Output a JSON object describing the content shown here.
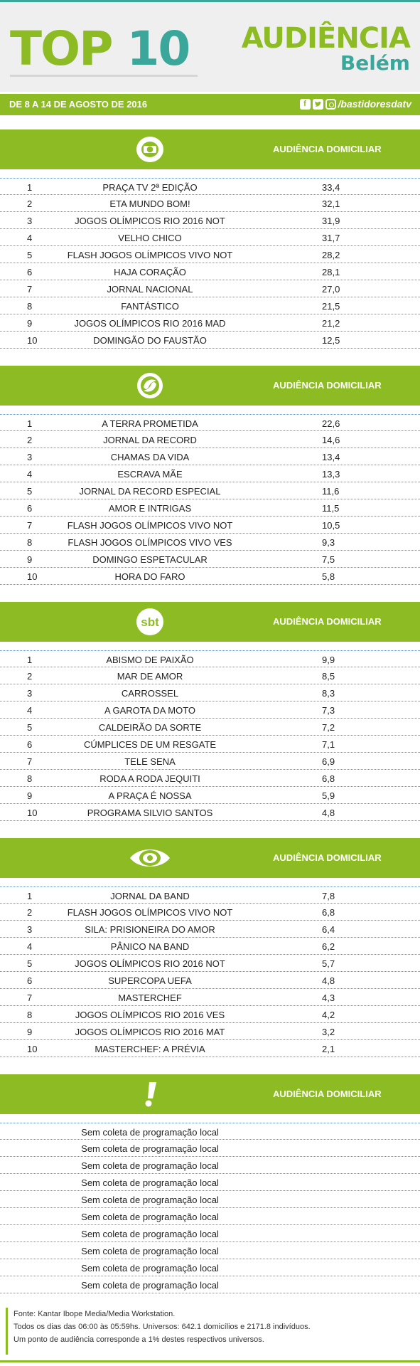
{
  "header": {
    "title_part1": "TOP",
    "title_part2": "10",
    "audience_label": "AUDIÊNCIA",
    "city": "Belém"
  },
  "subbar": {
    "date_range": "DE 8 A 14 DE AGOSTO DE 2016",
    "social_handle": "/bastidoresdatv"
  },
  "colors": {
    "brand_green": "#8dbb23",
    "brand_teal": "#3aa79a"
  },
  "sections": [
    {
      "logo_icon": "globo-logo-icon",
      "column_label": "AUDIÊNCIA DOMICILIAR",
      "rows": [
        {
          "rank": "1",
          "program": "PRAÇA TV 2ª EDIÇÃO",
          "value": "33,4"
        },
        {
          "rank": "2",
          "program": "ETA MUNDO BOM!",
          "value": "32,1"
        },
        {
          "rank": "3",
          "program": "JOGOS OLÍMPICOS RIO 2016 NOT",
          "value": "31,9"
        },
        {
          "rank": "4",
          "program": "VELHO CHICO",
          "value": "31,7"
        },
        {
          "rank": "5",
          "program": "FLASH JOGOS OLÍMPICOS VIVO NOT",
          "value": "28,2"
        },
        {
          "rank": "6",
          "program": "HAJA CORAÇÃO",
          "value": "28,1"
        },
        {
          "rank": "7",
          "program": "JORNAL NACIONAL",
          "value": "27,0"
        },
        {
          "rank": "8",
          "program": "FANTÁSTICO",
          "value": "21,5"
        },
        {
          "rank": "9",
          "program": "JOGOS OLÍMPICOS RIO 2016 MAD",
          "value": "21,2"
        },
        {
          "rank": "10",
          "program": "DOMINGÃO DO FAUSTÃO",
          "value": "12,5"
        }
      ]
    },
    {
      "logo_icon": "record-logo-icon",
      "column_label": "AUDIÊNCIA DOMICILIAR",
      "rows": [
        {
          "rank": "1",
          "program": "A TERRA PROMETIDA",
          "value": "22,6"
        },
        {
          "rank": "2",
          "program": "JORNAL DA RECORD",
          "value": "14,6"
        },
        {
          "rank": "3",
          "program": "CHAMAS DA VIDA",
          "value": "13,4"
        },
        {
          "rank": "4",
          "program": "ESCRAVA MÃE",
          "value": "13,3"
        },
        {
          "rank": "5",
          "program": "JORNAL DA RECORD ESPECIAL",
          "value": "11,6"
        },
        {
          "rank": "6",
          "program": "AMOR E INTRIGAS",
          "value": "11,5"
        },
        {
          "rank": "7",
          "program": "FLASH JOGOS OLÍMPICOS VIVO NOT",
          "value": "10,5"
        },
        {
          "rank": "8",
          "program": "FLASH JOGOS OLÍMPICOS VIVO VES",
          "value": "9,3"
        },
        {
          "rank": "9",
          "program": "DOMINGO ESPETACULAR",
          "value": "7,5"
        },
        {
          "rank": "10",
          "program": "HORA DO FARO",
          "value": "5,8"
        }
      ]
    },
    {
      "logo_icon": "sbt-logo-icon",
      "logo_text": "sbt",
      "column_label": "AUDIÊNCIA DOMICILIAR",
      "rows": [
        {
          "rank": "1",
          "program": "ABISMO DE PAIXÃO",
          "value": "9,9"
        },
        {
          "rank": "2",
          "program": "MAR DE AMOR",
          "value": "8,5"
        },
        {
          "rank": "3",
          "program": "CARROSSEL",
          "value": "8,3"
        },
        {
          "rank": "4",
          "program": "A GAROTA DA MOTO",
          "value": "7,3"
        },
        {
          "rank": "5",
          "program": "CALDEIRÃO DA SORTE",
          "value": "7,2"
        },
        {
          "rank": "6",
          "program": "CÚMPLICES DE UM RESGATE",
          "value": "7,1"
        },
        {
          "rank": "7",
          "program": "TELE SENA",
          "value": "6,9"
        },
        {
          "rank": "8",
          "program": "RODA A RODA JEQUITI",
          "value": "6,8"
        },
        {
          "rank": "9",
          "program": "A PRAÇA É NOSSA",
          "value": "5,9"
        },
        {
          "rank": "10",
          "program": "PROGRAMA SILVIO SANTOS",
          "value": "4,8"
        }
      ]
    },
    {
      "logo_icon": "band-logo-icon",
      "column_label": "AUDIÊNCIA DOMICILIAR",
      "rows": [
        {
          "rank": "1",
          "program": "JORNAL DA BAND",
          "value": "7,8"
        },
        {
          "rank": "2",
          "program": "FLASH JOGOS OLÍMPICOS VIVO NOT",
          "value": "6,8"
        },
        {
          "rank": "3",
          "program": "SILA: PRISIONEIRA DO AMOR",
          "value": "6,4"
        },
        {
          "rank": "4",
          "program": "PÂNICO NA BAND",
          "value": "6,2"
        },
        {
          "rank": "5",
          "program": "JOGOS OLÍMPICOS RIO 2016 NOT",
          "value": "5,7"
        },
        {
          "rank": "6",
          "program": "SUPERCOPA UEFA",
          "value": "4,8"
        },
        {
          "rank": "7",
          "program": "MASTERCHEF",
          "value": "4,3"
        },
        {
          "rank": "8",
          "program": "JOGOS OLÍMPICOS RIO 2016 VES",
          "value": "4,2"
        },
        {
          "rank": "9",
          "program": "JOGOS OLÍMPICOS RIO 2016 MAT",
          "value": "3,2"
        },
        {
          "rank": "10",
          "program": "MASTERCHEF: A PRÉVIA",
          "value": "2,1"
        }
      ]
    },
    {
      "logo_icon": "redetv-logo-icon",
      "logo_text": "!",
      "column_label": "AUDIÊNCIA DOMICILIAR",
      "no_data_text": "Sem coleta de programação local",
      "rows": [
        {
          "rank": "",
          "program": "",
          "value": ""
        },
        {
          "rank": "",
          "program": "",
          "value": ""
        },
        {
          "rank": "",
          "program": "",
          "value": ""
        },
        {
          "rank": "",
          "program": "",
          "value": ""
        },
        {
          "rank": "",
          "program": "",
          "value": ""
        },
        {
          "rank": "",
          "program": "",
          "value": ""
        },
        {
          "rank": "",
          "program": "",
          "value": ""
        },
        {
          "rank": "",
          "program": "",
          "value": ""
        },
        {
          "rank": "",
          "program": "",
          "value": ""
        },
        {
          "rank": "",
          "program": "",
          "value": ""
        }
      ]
    }
  ],
  "footer": {
    "source": "Fonte: Kantar Ibope Media/Media Workstation.",
    "universe": "Todos os dias das 06:00 às 05:59hs. Universos: 642.1 domicílios e 2171.8 indivíduos.",
    "point_note": "Um ponto de audiência corresponde a 1% destes respectivos universos."
  }
}
